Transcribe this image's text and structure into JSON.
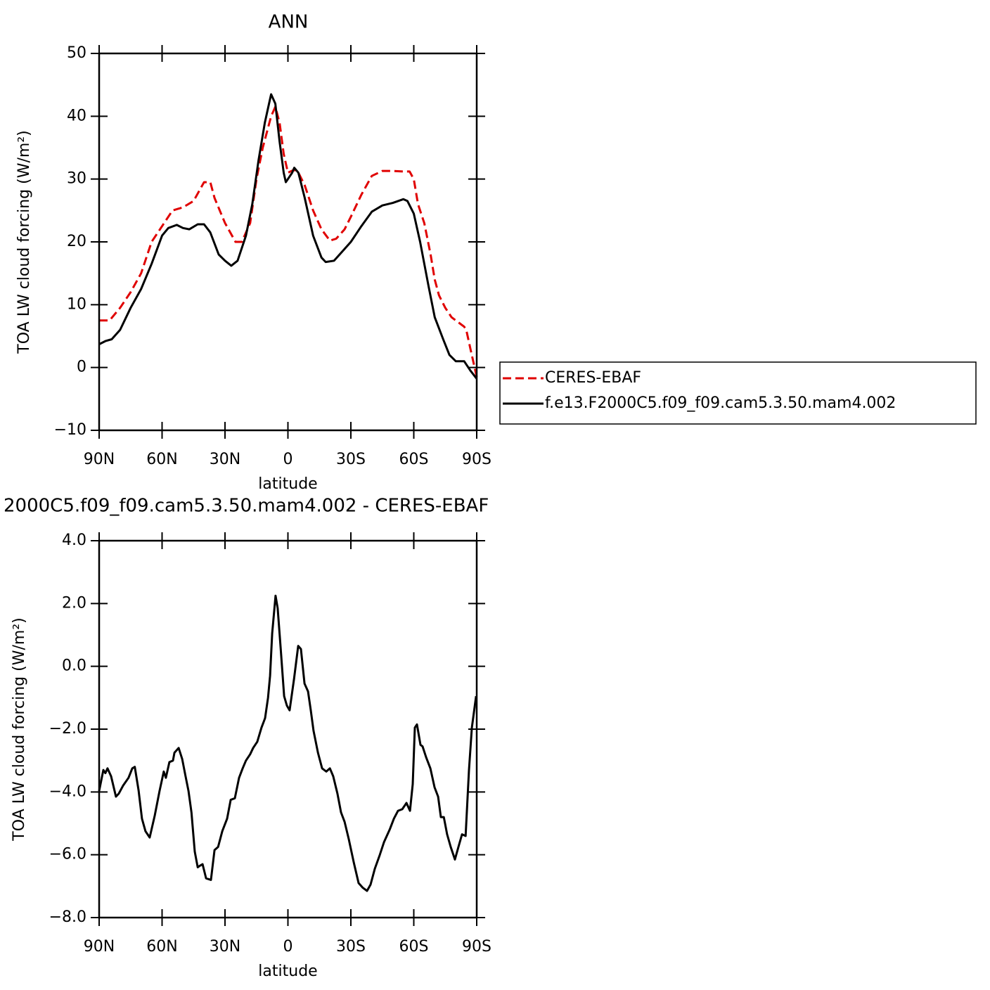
{
  "chart_data": [
    {
      "type": "line",
      "title": "ANN",
      "xlabel": "latitude",
      "ylabel": "TOA LW cloud forcing (W/m²)",
      "xlim": [
        90,
        -90
      ],
      "xticks": [
        {
          "value": 90,
          "label": "90N"
        },
        {
          "value": 60,
          "label": "60N"
        },
        {
          "value": 30,
          "label": "30N"
        },
        0,
        {
          "value": -30,
          "label": "30S"
        },
        {
          "value": -60,
          "label": "60S"
        },
        {
          "value": -90,
          "label": "90S"
        }
      ],
      "ylim": [
        -10,
        50
      ],
      "yticks": [
        {
          "value": -10,
          "label": "−10"
        },
        0,
        10,
        20,
        30,
        40,
        50
      ],
      "series": [
        {
          "name": "CERES-EBAF",
          "color": "#e00000",
          "dash": true,
          "x": [
            90,
            85,
            80,
            75,
            70,
            65,
            60,
            55,
            50,
            45,
            40,
            37,
            35,
            30,
            25,
            22,
            18,
            15,
            12,
            8,
            6,
            4,
            2,
            0,
            -3,
            -5,
            -8,
            -12,
            -16,
            -20,
            -23,
            -27,
            -30,
            -35,
            -40,
            -45,
            -50,
            -55,
            -58,
            -60,
            -62,
            -65,
            -68,
            -70,
            -72,
            -75,
            -78,
            -80,
            -84,
            -85,
            -87,
            -90
          ],
          "values": [
            7.5,
            7.5,
            9.5,
            12,
            15,
            20,
            22.5,
            25,
            25.5,
            26.5,
            29.5,
            29.5,
            27,
            23,
            20,
            20,
            23,
            30,
            35,
            40,
            41.5,
            39,
            34,
            31,
            31.5,
            31,
            29,
            25,
            22,
            20.2,
            20.5,
            22,
            24,
            27.5,
            30.5,
            31.3,
            31.3,
            31.2,
            31.2,
            30,
            26,
            23,
            18,
            14,
            11.5,
            9.5,
            8,
            7.5,
            6.5,
            6,
            3,
            -1.5
          ]
        },
        {
          "name": "f.e13.F2000C5.f09_f09.cam5.3.50.mam4.002",
          "color": "#000000",
          "dash": false,
          "x": [
            90,
            87,
            84,
            80,
            75,
            70,
            65,
            60,
            57,
            53,
            50,
            47,
            43,
            40,
            37,
            33,
            30,
            27,
            24,
            20,
            17,
            14,
            11,
            9,
            8,
            6,
            4,
            2,
            1,
            -2,
            -3,
            -5,
            -8,
            -12,
            -16,
            -18,
            -22,
            -26,
            -30,
            -35,
            -40,
            -45,
            -50,
            -55,
            -57,
            -60,
            -63,
            -67,
            -70,
            -74,
            -77,
            -80,
            -84,
            -87,
            -90
          ],
          "values": [
            3.7,
            4.2,
            4.5,
            6,
            9.5,
            12.5,
            16.5,
            21,
            22.2,
            22.7,
            22.2,
            22,
            22.8,
            22.8,
            21.5,
            18,
            17,
            16.2,
            17,
            21,
            26,
            33,
            39,
            42,
            43.5,
            42,
            36,
            31,
            29.5,
            31,
            31.8,
            31,
            27,
            21,
            17.5,
            16.8,
            17,
            18.5,
            20,
            22.5,
            24.8,
            25.8,
            26.2,
            26.8,
            26.5,
            24.5,
            20,
            13,
            8,
            4.5,
            2,
            1,
            1,
            -0.5,
            -1.8
          ]
        }
      ]
    },
    {
      "type": "line",
      "title": "2000C5.f09_f09.cam5.3.50.mam4.002 - CERES-EBAF",
      "xlabel": "latitude",
      "ylabel": "TOA LW cloud forcing (W/m²)",
      "xlim": [
        90,
        -90
      ],
      "xticks": [
        {
          "value": 90,
          "label": "90N"
        },
        {
          "value": 60,
          "label": "60N"
        },
        {
          "value": 30,
          "label": "30N"
        },
        0,
        {
          "value": -30,
          "label": "30S"
        },
        {
          "value": -60,
          "label": "60S"
        },
        {
          "value": -90,
          "label": "90S"
        }
      ],
      "ylim": [
        -8,
        4
      ],
      "yticks": [
        {
          "value": -8,
          "label": "−8.0"
        },
        {
          "value": -6,
          "label": "−6.0"
        },
        {
          "value": -4,
          "label": "−4.0"
        },
        {
          "value": -2,
          "label": "−2.0"
        },
        {
          "value": 0,
          "label": "0.0"
        },
        {
          "value": 2,
          "label": "2.0"
        },
        {
          "value": 4,
          "label": "4.0"
        }
      ],
      "series": [
        {
          "color": "#000000",
          "dash": false,
          "x": [
            90,
            88,
            87,
            86,
            84.3,
            82,
            80.6,
            78.6,
            76,
            74.2,
            73,
            71.2,
            69.6,
            67.9,
            65.9,
            63.5,
            61.2,
            59.2,
            58.2,
            56.5,
            54.8,
            54.1,
            52.1,
            50.4,
            48.8,
            47.4,
            46,
            44.4,
            43,
            42,
            40.7,
            39,
            36.7,
            35,
            33.3,
            31.3,
            29,
            27.3,
            25.3,
            23.3,
            21.6,
            20,
            18,
            16.6,
            14.6,
            12.6,
            10.9,
            9.5,
            8.5,
            7.5,
            5.9,
            4.9,
            3.5,
            1.8,
            0.5,
            -0.8,
            -2.9,
            -4.9,
            -6.2,
            -7.9,
            -9.6,
            -10.9,
            -12.2,
            -14.3,
            -16.3,
            -18.3,
            -20,
            -21.6,
            -23.6,
            -25.3,
            -27,
            -29,
            -31.4,
            -33.7,
            -35.7,
            -37.7,
            -39.4,
            -41.4,
            -43.8,
            -45.8,
            -48.5,
            -50.5,
            -52.5,
            -54.5,
            -56.5,
            -58.2,
            -59.5,
            -60.5,
            -61.5,
            -63.2,
            -64.2,
            -65.9,
            -67.9,
            -69.9,
            -71.6,
            -72.9,
            -74.3,
            -75.9,
            -77.6,
            -79.6,
            -81.3,
            -83,
            -84.7,
            -86.3,
            -87.7,
            -89.7
          ],
          "values": [
            -3.97,
            -3.3,
            -3.4,
            -3.25,
            -3.5,
            -4.15,
            -4.05,
            -3.8,
            -3.55,
            -3.25,
            -3.2,
            -3.95,
            -4.85,
            -5.25,
            -5.45,
            -4.75,
            -3.97,
            -3.35,
            -3.55,
            -3.05,
            -3.0,
            -2.75,
            -2.6,
            -2.95,
            -3.5,
            -3.97,
            -4.65,
            -5.9,
            -6.4,
            -6.35,
            -6.3,
            -6.75,
            -6.8,
            -5.85,
            -5.75,
            -5.25,
            -4.85,
            -4.25,
            -4.2,
            -3.55,
            -3.25,
            -3,
            -2.8,
            -2.6,
            -2.4,
            -1.95,
            -1.65,
            -1.0,
            -0.3,
            1.05,
            2.25,
            1.85,
            0.6,
            -0.95,
            -1.25,
            -1.4,
            -0.4,
            0.65,
            0.55,
            -0.55,
            -0.8,
            -1.4,
            -2.05,
            -2.75,
            -3.25,
            -3.35,
            -3.25,
            -3.5,
            -4.05,
            -4.65,
            -4.95,
            -5.5,
            -6.25,
            -6.9,
            -7.05,
            -7.15,
            -6.95,
            -6.45,
            -6.0,
            -5.6,
            -5.2,
            -4.85,
            -4.6,
            -4.55,
            -4.35,
            -4.6,
            -3.75,
            -1.95,
            -1.85,
            -2.5,
            -2.55,
            -2.9,
            -3.25,
            -3.85,
            -4.15,
            -4.8,
            -4.8,
            -5.35,
            -5.75,
            -6.15,
            -5.75,
            -5.35,
            -5.4,
            -3.3,
            -1.95,
            -0.95
          ]
        }
      ]
    }
  ]
}
